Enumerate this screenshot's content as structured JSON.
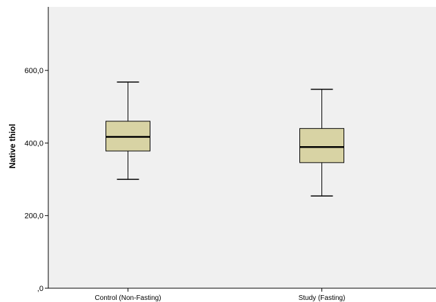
{
  "chart_data": {
    "type": "boxplot",
    "title": "",
    "xlabel": "",
    "ylabel": "Native thiol",
    "ylim": [
      0,
      775
    ],
    "yticks": [
      0,
      200,
      400,
      600
    ],
    "ytick_labels": [
      ",0",
      "200,0",
      "400,0",
      "600,0"
    ],
    "grid": false,
    "categories": [
      "Control (Non-Fasting)",
      "Study (Fasting)"
    ],
    "boxes": [
      {
        "category": "Control (Non-Fasting)",
        "min": 300,
        "q1": 378,
        "median": 417,
        "q3": 460,
        "max": 568
      },
      {
        "category": "Study (Fasting)",
        "min": 254,
        "q1": 346,
        "median": 389,
        "q3": 440,
        "max": 548
      }
    ],
    "colors": {
      "plot_background": "#f0f0f0",
      "box_fill": "#d8d3a4",
      "stroke": "#000000"
    }
  }
}
